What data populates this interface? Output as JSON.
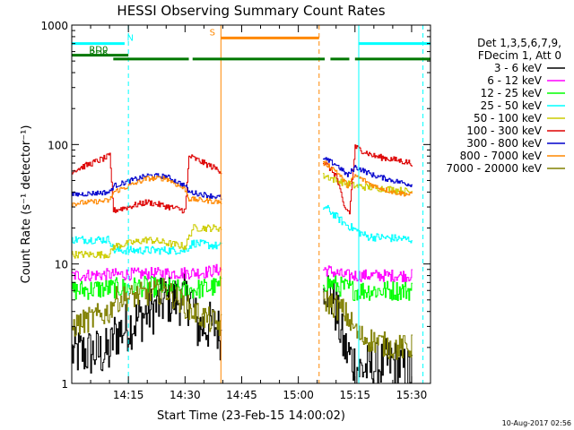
{
  "chart_data": {
    "type": "line",
    "title": "HESSI Observing Summary Count Rates",
    "xlabel": "Start Time (23-Feb-15 14:00:02)",
    "ylabel": "Count Rate (s⁻¹ detector⁻¹)",
    "yscale": "log",
    "ylim": [
      1,
      1000
    ],
    "xlim_minutes": [
      0,
      95
    ],
    "x_ticks": [
      {
        "min": 15,
        "label": "14:15"
      },
      {
        "min": 30,
        "label": "14:30"
      },
      {
        "min": 45,
        "label": "14:45"
      },
      {
        "min": 60,
        "label": "15:00"
      },
      {
        "min": 75,
        "label": "15:15"
      },
      {
        "min": 90,
        "label": "15:30"
      }
    ],
    "y_ticks": [
      {
        "value": 1,
        "label": "1"
      },
      {
        "value": 10,
        "label": "10"
      },
      {
        "value": 100,
        "label": "100"
      },
      {
        "value": 1000,
        "label": "1000"
      }
    ],
    "legend": {
      "placement": "right",
      "header": [
        "Det 1,3,5,6,7,9,",
        "FDecim 1, Att 0"
      ],
      "entries": [
        {
          "label": "3 - 6 keV",
          "color": "#000000"
        },
        {
          "label": "6 - 12 keV",
          "color": "#ff00ff"
        },
        {
          "label": "12 - 25 keV",
          "color": "#00ff00"
        },
        {
          "label": "25 - 50 keV",
          "color": "#00ffff"
        },
        {
          "label": "50 - 100 keV",
          "color": "#cccc00"
        },
        {
          "label": "100 - 300 keV",
          "color": "#dd0000"
        },
        {
          "label": "300 - 800 keV",
          "color": "#0000cc"
        },
        {
          "label": "800 - 7000 keV",
          "color": "#ff8800"
        },
        {
          "label": "7000 - 20000 keV",
          "color": "#808000"
        }
      ]
    },
    "segments_minutes": [
      [
        0,
        39.5
      ],
      [
        66.5,
        90
      ]
    ],
    "series": [
      {
        "name": "3 - 6 keV",
        "color": "#000000",
        "noise": 0.5,
        "points": [
          [
            1,
            1.8
          ],
          [
            10,
            1.8
          ],
          [
            11,
            2.5
          ],
          [
            25,
            5
          ],
          [
            32,
            5
          ],
          [
            33,
            3
          ],
          [
            38,
            3
          ],
          [
            39.5,
            2.5
          ],
          [
            67,
            7
          ],
          [
            70,
            4
          ],
          [
            72,
            2
          ],
          [
            76,
            1.3
          ],
          [
            85,
            1.5
          ],
          [
            90,
            1.2
          ]
        ]
      },
      {
        "name": "6 - 12 keV",
        "color": "#ff00ff",
        "noise": 0.12,
        "points": [
          [
            0,
            8
          ],
          [
            35,
            8.5
          ],
          [
            39.5,
            9
          ],
          [
            67,
            9
          ],
          [
            72,
            8
          ],
          [
            80,
            8
          ],
          [
            90,
            8
          ]
        ]
      },
      {
        "name": "12 - 25 keV",
        "color": "#00ff00",
        "noise": 0.2,
        "points": [
          [
            0,
            6
          ],
          [
            20,
            6.5
          ],
          [
            30,
            6
          ],
          [
            39.5,
            6.5
          ],
          [
            67,
            7
          ],
          [
            75,
            6
          ],
          [
            90,
            6
          ]
        ]
      },
      {
        "name": "25 - 50 keV",
        "color": "#00ffff",
        "noise": 0.08,
        "points": [
          [
            0,
            16
          ],
          [
            10,
            16
          ],
          [
            11,
            13
          ],
          [
            30,
            13
          ],
          [
            32,
            15
          ],
          [
            39.5,
            14
          ],
          [
            67,
            30
          ],
          [
            72,
            22
          ],
          [
            78,
            17
          ],
          [
            90,
            16
          ]
        ]
      },
      {
        "name": "50 - 100 keV",
        "color": "#cccc00",
        "noise": 0.07,
        "points": [
          [
            0,
            12
          ],
          [
            10,
            12
          ],
          [
            11,
            14
          ],
          [
            20,
            16
          ],
          [
            30,
            14
          ],
          [
            32,
            20
          ],
          [
            39.5,
            20
          ],
          [
            67,
            55
          ],
          [
            70,
            50
          ],
          [
            75,
            45
          ],
          [
            85,
            42
          ],
          [
            90,
            40
          ]
        ]
      },
      {
        "name": "100 - 300 keV",
        "color": "#dd0000",
        "noise": 0.06,
        "points": [
          [
            0,
            60
          ],
          [
            10,
            80
          ],
          [
            11,
            28
          ],
          [
            20,
            33
          ],
          [
            30,
            28
          ],
          [
            31,
            80
          ],
          [
            39.5,
            60
          ],
          [
            67,
            70
          ],
          [
            70,
            55
          ],
          [
            72,
            30
          ],
          [
            73.5,
            27
          ],
          [
            75,
            95
          ],
          [
            80,
            80
          ],
          [
            85,
            75
          ],
          [
            90,
            70
          ]
        ]
      },
      {
        "name": "300 - 800 keV",
        "color": "#0000cc",
        "noise": 0.05,
        "points": [
          [
            0,
            38
          ],
          [
            10,
            40
          ],
          [
            11,
            45
          ],
          [
            20,
            55
          ],
          [
            25,
            54
          ],
          [
            30,
            45
          ],
          [
            31,
            40
          ],
          [
            39.5,
            36
          ],
          [
            67,
            75
          ],
          [
            70,
            68
          ],
          [
            73,
            55
          ],
          [
            75,
            65
          ],
          [
            80,
            55
          ],
          [
            85,
            50
          ],
          [
            90,
            46
          ]
        ]
      },
      {
        "name": "800 - 7000 keV",
        "color": "#ff8800",
        "noise": 0.05,
        "points": [
          [
            0,
            32
          ],
          [
            10,
            34
          ],
          [
            11,
            40
          ],
          [
            20,
            52
          ],
          [
            25,
            52
          ],
          [
            30,
            42
          ],
          [
            31,
            35
          ],
          [
            39.5,
            33
          ],
          [
            67,
            70
          ],
          [
            70,
            60
          ],
          [
            73,
            45
          ],
          [
            75,
            55
          ],
          [
            80,
            45
          ],
          [
            85,
            40
          ],
          [
            90,
            38
          ]
        ]
      },
      {
        "name": "7000 - 20000 keV",
        "color": "#808000",
        "noise": 0.25,
        "points": [
          [
            0,
            3
          ],
          [
            10,
            4
          ],
          [
            11,
            5
          ],
          [
            25,
            6
          ],
          [
            32,
            4
          ],
          [
            39.5,
            3
          ],
          [
            67,
            5
          ],
          [
            72,
            4
          ],
          [
            76,
            2.5
          ],
          [
            85,
            2
          ],
          [
            90,
            2
          ]
        ]
      }
    ],
    "flag_bars": [
      {
        "label": "N",
        "label_color": "#00ffff",
        "color": "#00ffff",
        "y": 700,
        "spans": [
          [
            0,
            14
          ],
          [
            76,
            95
          ]
        ],
        "label_at": 14.6
      },
      {
        "label": "RD0",
        "label_color": "#007700",
        "color": "#007700",
        "y": 560,
        "spans": [
          [
            0,
            15
          ]
        ],
        "label_at": 4.6
      },
      {
        "label": "RD6",
        "label_color": "#007700",
        "color": "#007700",
        "y": 520,
        "spans": [
          [
            11,
            31
          ],
          [
            32,
            67
          ],
          [
            68.5,
            73.5
          ],
          [
            75,
            95
          ]
        ],
        "label_at": 4.6
      },
      {
        "label": "S",
        "label_color": "#ff8800",
        "color": "#ff8800",
        "y": 780,
        "spans": [
          [
            39.5,
            65.5
          ]
        ],
        "label_at": 36.5
      }
    ],
    "markers": [
      {
        "x": 0,
        "color": "#00ffff",
        "style": "solid"
      },
      {
        "x": 15,
        "color": "#00ffff",
        "style": "dashed"
      },
      {
        "x": 39.5,
        "color": "#ff8800",
        "style": "solid"
      },
      {
        "x": 65.5,
        "color": "#ff8800",
        "style": "dashed"
      },
      {
        "x": 76,
        "color": "#00ffff",
        "style": "solid"
      },
      {
        "x": 93,
        "color": "#00ffff",
        "style": "dashed"
      }
    ],
    "timestamp": "10-Aug-2017 02:56"
  }
}
